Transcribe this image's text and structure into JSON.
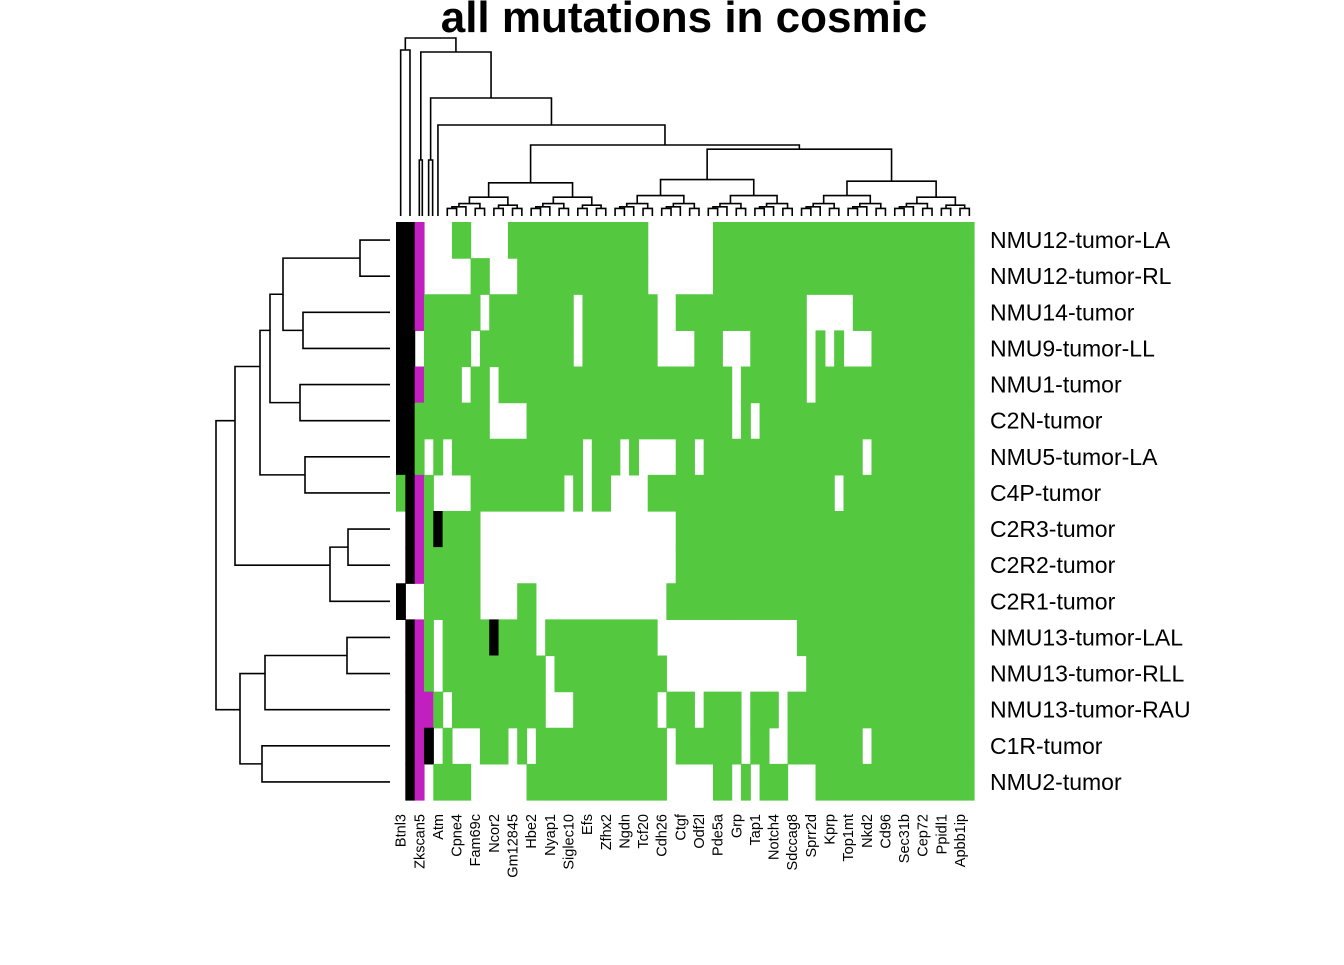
{
  "chart_data": {
    "type": "heatmap",
    "title": "all mutations in cosmic",
    "rows": [
      "NMU12-tumor-LA",
      "NMU12-tumor-RL",
      "NMU14-tumor",
      "NMU9-tumor-LL",
      "NMU1-tumor",
      "C2N-tumor",
      "NMU5-tumor-LA",
      "C4P-tumor",
      "C2R3-tumor",
      "C2R2-tumor",
      "C2R1-tumor",
      "NMU13-tumor-LAL",
      "NMU13-tumor-RLL",
      "NMU13-tumor-RAU",
      "C1R-tumor",
      "NMU2-tumor"
    ],
    "column_labels": [
      {
        "col": 0,
        "label": "Btnl3"
      },
      {
        "col": 2,
        "label": "Zkscan5"
      },
      {
        "col": 4,
        "label": "Atm"
      },
      {
        "col": 6,
        "label": "Cpne4"
      },
      {
        "col": 8,
        "label": "Fam69c"
      },
      {
        "col": 10,
        "label": "Ncor2"
      },
      {
        "col": 12,
        "label": "Gm12845"
      },
      {
        "col": 14,
        "label": "Hbe2"
      },
      {
        "col": 16,
        "label": "Nyap1"
      },
      {
        "col": 18,
        "label": "Siglec10"
      },
      {
        "col": 20,
        "label": "Efs"
      },
      {
        "col": 22,
        "label": "Zfhx2"
      },
      {
        "col": 24,
        "label": "Ngdn"
      },
      {
        "col": 26,
        "label": "Tcf20"
      },
      {
        "col": 28,
        "label": "Cdh26"
      },
      {
        "col": 30,
        "label": "Ctgf"
      },
      {
        "col": 32,
        "label": "Odf2l"
      },
      {
        "col": 34,
        "label": "Pde5a"
      },
      {
        "col": 36,
        "label": "Grp"
      },
      {
        "col": 38,
        "label": "Tap1"
      },
      {
        "col": 40,
        "label": "Notch4"
      },
      {
        "col": 42,
        "label": "Sdccag8"
      },
      {
        "col": 44,
        "label": "Sprr2d"
      },
      {
        "col": 46,
        "label": "Kprp"
      },
      {
        "col": 48,
        "label": "Top1mt"
      },
      {
        "col": 50,
        "label": "Nkd2"
      },
      {
        "col": 52,
        "label": "Cd96"
      },
      {
        "col": 54,
        "label": "Sec31b"
      },
      {
        "col": 56,
        "label": "Cep72"
      },
      {
        "col": 58,
        "label": "Ppidl1"
      },
      {
        "col": 60,
        "label": "Apbb1ip"
      }
    ],
    "n_columns": 62,
    "legend": "none",
    "palette": {
      "white": "#FFFFFF",
      "green": "#54C940",
      "magenta": "#C21FC0",
      "black": "#000000"
    },
    "matrix": [
      "kkmw0w1100002222222222222220000000111111111111111111111111111111",
      "kkmw0w0011000111111111111110000000111111111111111111111111111111",
      "kkm11111101111111110111111110011111111111111000001111111111111111",
      "kkw1111101111111111011111111000011100011111101010001111111111110",
      "kkm1111011011111111111111111111111110111111101111111111111111111",
      "kk111111110000111111111111111111111101011111111111111111111111111",
      "kk1w1011111111111111011101000011011111111111111111011111111111111",
      "1km10000111111111101011000011111111111111111111011111111111111111",
      "0km1k1111000000000000000000000111111111111111111111111111111111111",
      "0km1111110000000000000000000001111111111111111111111111111111111111",
      "k0w11111100001100000000000000111111111111111111111111111111111111",
      "wkm1w11111k1111011111111111100000000000000011111111111111111111",
      "wkm1w11111111111011111111111100000000000000011111111111111111111",
      "wkmm101111111111000111111111011101111011101111111111111111111111",
      "wkmk01000111010111111111111110111111101100111111110111111111111",
      "wkm01111000000111111111111111000001101011100011111111111111111111"
    ]
  }
}
